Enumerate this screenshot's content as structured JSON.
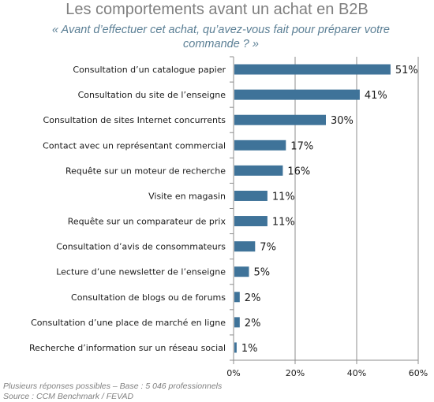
{
  "title": "Les comportements avant un achat en B2B",
  "subtitle": "« Avant d’effectuer cet achat, qu’avez-vous fait pour préparer votre commande ? »",
  "footnote": {
    "line1": "Plusieurs réponses possibles – Base  : 5 046 professionnels",
    "line2": "Source : CCM Benchmark / FEVAD"
  },
  "colors": {
    "bar": "#3f7399",
    "grid": "#8c8c8c",
    "axis": "#8c8c8c"
  },
  "chart_data": {
    "type": "bar",
    "orientation": "horizontal",
    "categories": [
      "Consultation d’un catalogue papier",
      "Consultation du site de l’enseigne",
      "Consultation de sites Internet concurrents",
      "Contact avec un représentant commercial",
      "Requête sur un moteur de recherche",
      "Visite en magasin",
      "Requête sur un comparateur de prix",
      "Consultation d’avis de consommateurs",
      "Lecture d’une newsletter de l’enseigne",
      "Consultation de blogs ou de forums",
      "Consultation d’une place de marché en ligne",
      "Recherche d’information sur un réseau social"
    ],
    "values": [
      51,
      41,
      30,
      17,
      16,
      11,
      11,
      7,
      5,
      2,
      2,
      1
    ],
    "value_labels": [
      "51%",
      "41%",
      "30%",
      "17%",
      "16%",
      "11%",
      "11%",
      "7%",
      "5%",
      "2%",
      "2%",
      "1%"
    ],
    "xlim": [
      0,
      60
    ],
    "xticks": [
      0,
      20,
      40,
      60
    ],
    "xtick_labels": [
      "0%",
      "20%",
      "40%",
      "60%"
    ],
    "grid": true
  }
}
